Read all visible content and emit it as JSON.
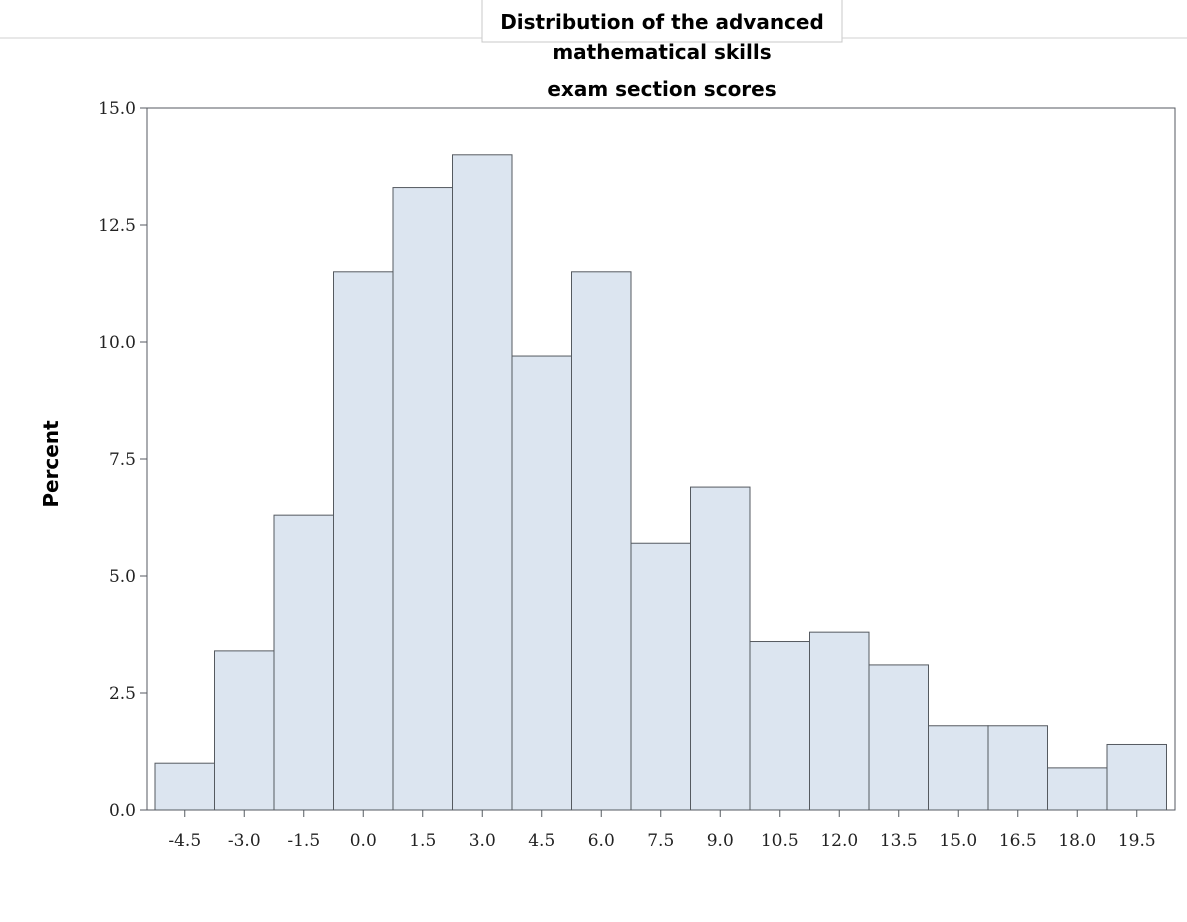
{
  "chart_data": {
    "type": "bar",
    "title_lines": [
      "Distribution of the advanced",
      "mathematical skills",
      "exam section scores"
    ],
    "ylabel": "Percent",
    "xlabel": "",
    "categories": [
      "-4.5",
      "-3.0",
      "-1.5",
      "0.0",
      "1.5",
      "3.0",
      "4.5",
      "6.0",
      "7.5",
      "9.0",
      "10.5",
      "12.0",
      "13.5",
      "15.0",
      "16.5",
      "18.0",
      "19.5"
    ],
    "values": [
      1.0,
      3.4,
      6.3,
      11.5,
      13.3,
      14.0,
      9.7,
      11.5,
      5.7,
      6.9,
      3.6,
      3.8,
      3.1,
      1.8,
      1.8,
      0.9,
      1.4
    ],
    "ylim": [
      0,
      15
    ],
    "yticks": [
      "0.0",
      "2.5",
      "5.0",
      "7.5",
      "10.0",
      "12.5",
      "15.0"
    ],
    "grid": false,
    "bar_color": "#dce5f0",
    "edge_color": "#555a60"
  }
}
